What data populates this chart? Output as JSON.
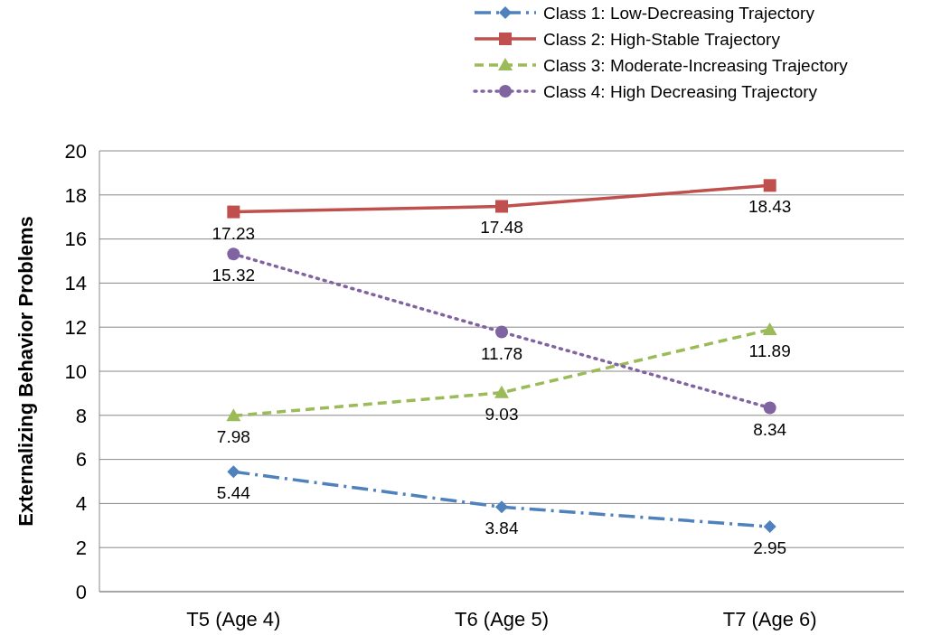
{
  "chart_data": {
    "type": "line",
    "ylabel": "Externalizing  Behavior  Problems",
    "categories": [
      "T5 (Age 4)",
      "T6 (Age 5)",
      "T7 (Age 6)"
    ],
    "series": [
      {
        "name": "Class 1: Low-Decreasing Trajectory",
        "color": "#4f81bd",
        "values": [
          5.44,
          3.84,
          2.95
        ],
        "marker": "diamond",
        "line_style": "dashdot"
      },
      {
        "name": "Class 2: High-Stable Trajectory",
        "color": "#c0504d",
        "values": [
          17.23,
          17.48,
          18.43
        ],
        "marker": "square",
        "line_style": "solid"
      },
      {
        "name": "Class 3: Moderate-Increasing Trajectory",
        "color": "#9bbb59",
        "values": [
          7.98,
          9.03,
          11.89
        ],
        "marker": "triangle",
        "line_style": "dashed"
      },
      {
        "name": "Class 4: High Decreasing Trajectory",
        "color": "#8064a2",
        "values": [
          15.32,
          11.78,
          8.34
        ],
        "marker": "circle",
        "line_style": "dotted"
      }
    ],
    "ylim": [
      0,
      20
    ],
    "yticks": [
      0,
      2,
      4,
      6,
      8,
      10,
      12,
      14,
      16,
      18,
      20
    ],
    "grid": "y",
    "legend": "top right",
    "data_labels": true
  }
}
